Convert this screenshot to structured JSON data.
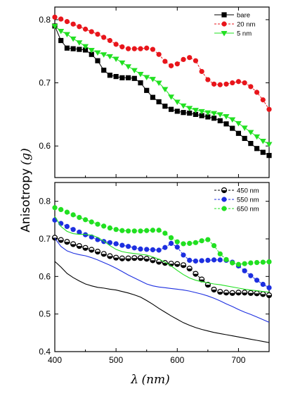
{
  "chart_data": [
    {
      "type": "line",
      "panel": "top",
      "xlim": [
        400,
        750
      ],
      "ylim": [
        0.55,
        0.82
      ],
      "yticks": [
        0.6,
        0.7,
        0.8
      ],
      "legend_position": "top-right",
      "grid": false,
      "series": [
        {
          "name": "bare",
          "color": "#000000",
          "marker": "square",
          "line": "solid",
          "x": [
            400,
            410,
            420,
            430,
            440,
            450,
            460,
            470,
            480,
            490,
            500,
            510,
            520,
            530,
            540,
            550,
            560,
            570,
            580,
            590,
            600,
            610,
            620,
            630,
            640,
            650,
            660,
            670,
            680,
            690,
            700,
            710,
            720,
            730,
            740,
            750
          ],
          "y": [
            0.79,
            0.767,
            0.755,
            0.754,
            0.753,
            0.752,
            0.745,
            0.735,
            0.72,
            0.712,
            0.71,
            0.708,
            0.708,
            0.707,
            0.7,
            0.688,
            0.677,
            0.67,
            0.663,
            0.658,
            0.655,
            0.653,
            0.652,
            0.65,
            0.648,
            0.646,
            0.644,
            0.64,
            0.635,
            0.628,
            0.62,
            0.612,
            0.604,
            0.596,
            0.59,
            0.585
          ]
        },
        {
          "name": "20 nm",
          "color": "#e8151b",
          "marker": "circle",
          "line": "dashed",
          "x": [
            400,
            410,
            420,
            430,
            440,
            450,
            460,
            470,
            480,
            490,
            500,
            510,
            520,
            530,
            540,
            550,
            560,
            570,
            580,
            590,
            600,
            610,
            620,
            630,
            640,
            650,
            660,
            670,
            680,
            690,
            700,
            710,
            720,
            730,
            740,
            750
          ],
          "y": [
            0.804,
            0.801,
            0.797,
            0.793,
            0.789,
            0.785,
            0.781,
            0.777,
            0.772,
            0.767,
            0.761,
            0.757,
            0.754,
            0.754,
            0.754,
            0.755,
            0.753,
            0.745,
            0.734,
            0.727,
            0.73,
            0.737,
            0.74,
            0.735,
            0.718,
            0.705,
            0.698,
            0.697,
            0.698,
            0.7,
            0.702,
            0.7,
            0.694,
            0.685,
            0.673,
            0.658
          ]
        },
        {
          "name": "5 nm",
          "color": "#21e021",
          "marker": "triangle-down",
          "line": "solid",
          "x": [
            400,
            410,
            420,
            430,
            440,
            450,
            460,
            470,
            480,
            490,
            500,
            510,
            520,
            530,
            540,
            550,
            560,
            570,
            580,
            590,
            600,
            610,
            620,
            630,
            640,
            650,
            660,
            670,
            680,
            690,
            700,
            710,
            720,
            730,
            740,
            750
          ],
          "y": [
            0.79,
            0.782,
            0.777,
            0.77,
            0.764,
            0.758,
            0.752,
            0.748,
            0.745,
            0.742,
            0.738,
            0.732,
            0.726,
            0.72,
            0.714,
            0.709,
            0.706,
            0.7,
            0.69,
            0.678,
            0.67,
            0.664,
            0.66,
            0.657,
            0.655,
            0.653,
            0.652,
            0.65,
            0.647,
            0.642,
            0.636,
            0.629,
            0.622,
            0.615,
            0.608,
            0.603
          ]
        }
      ]
    },
    {
      "type": "line",
      "panel": "bottom",
      "xlim": [
        400,
        750
      ],
      "ylim": [
        0.4,
        0.85
      ],
      "xticks": [
        400,
        500,
        600,
        700
      ],
      "yticks": [
        0.4,
        0.5,
        0.6,
        0.7,
        0.8
      ],
      "legend_position": "top-right",
      "grid": false,
      "series": [
        {
          "name": "450 nm",
          "color": "#000000",
          "marker": "half-circle",
          "line": "dashed",
          "x": [
            400,
            410,
            420,
            430,
            440,
            450,
            460,
            470,
            480,
            490,
            500,
            510,
            520,
            530,
            540,
            550,
            560,
            570,
            580,
            590,
            600,
            610,
            620,
            630,
            640,
            650,
            660,
            670,
            680,
            690,
            700,
            710,
            720,
            730,
            740,
            750
          ],
          "y": [
            0.703,
            0.697,
            0.692,
            0.686,
            0.681,
            0.676,
            0.671,
            0.666,
            0.66,
            0.654,
            0.65,
            0.648,
            0.648,
            0.649,
            0.649,
            0.647,
            0.643,
            0.639,
            0.636,
            0.634,
            0.633,
            0.63,
            0.621,
            0.607,
            0.592,
            0.578,
            0.565,
            0.559,
            0.557,
            0.556,
            0.557,
            0.557,
            0.556,
            0.555,
            0.553,
            0.55
          ]
        },
        {
          "name": "550 nm",
          "color": "#1d2fe0",
          "marker": "circle",
          "line": "dashed",
          "x": [
            400,
            410,
            420,
            430,
            440,
            450,
            460,
            470,
            480,
            490,
            500,
            510,
            520,
            530,
            540,
            550,
            560,
            570,
            580,
            590,
            600,
            610,
            620,
            630,
            640,
            650,
            660,
            670,
            680,
            690,
            700,
            710,
            720,
            730,
            740,
            750
          ],
          "y": [
            0.75,
            0.741,
            0.733,
            0.725,
            0.718,
            0.711,
            0.705,
            0.698,
            0.693,
            0.69,
            0.687,
            0.683,
            0.68,
            0.676,
            0.673,
            0.672,
            0.671,
            0.67,
            0.677,
            0.688,
            0.678,
            0.657,
            0.643,
            0.641,
            0.642,
            0.643,
            0.644,
            0.644,
            0.643,
            0.638,
            0.628,
            0.615,
            0.602,
            0.59,
            0.579,
            0.57
          ]
        },
        {
          "name": "650 nm",
          "color": "#21e021",
          "marker": "circle",
          "line": "dashed",
          "x": [
            400,
            410,
            420,
            430,
            440,
            450,
            460,
            470,
            480,
            490,
            500,
            510,
            520,
            530,
            540,
            550,
            560,
            570,
            580,
            590,
            600,
            610,
            620,
            630,
            640,
            650,
            660,
            670,
            680,
            690,
            700,
            710,
            720,
            730,
            740,
            750
          ],
          "y": [
            0.783,
            0.778,
            0.771,
            0.764,
            0.757,
            0.751,
            0.745,
            0.739,
            0.734,
            0.729,
            0.725,
            0.722,
            0.721,
            0.721,
            0.721,
            0.722,
            0.723,
            0.723,
            0.715,
            0.703,
            0.692,
            0.687,
            0.688,
            0.69,
            0.695,
            0.698,
            0.682,
            0.66,
            0.645,
            0.636,
            0.632,
            0.634,
            0.636,
            0.637,
            0.638,
            0.639
          ]
        },
        {
          "name": "",
          "color": "#000000",
          "marker": "none",
          "line": "solid",
          "x": [
            400,
            410,
            420,
            430,
            440,
            450,
            460,
            470,
            480,
            490,
            500,
            510,
            520,
            530,
            540,
            550,
            560,
            570,
            580,
            590,
            600,
            610,
            620,
            630,
            640,
            650,
            660,
            670,
            680,
            690,
            700,
            710,
            720,
            730,
            740,
            750
          ],
          "y": [
            0.64,
            0.625,
            0.608,
            0.597,
            0.588,
            0.58,
            0.575,
            0.571,
            0.569,
            0.566,
            0.564,
            0.56,
            0.556,
            0.551,
            0.545,
            0.536,
            0.526,
            0.515,
            0.505,
            0.495,
            0.486,
            0.477,
            0.47,
            0.464,
            0.459,
            0.455,
            0.451,
            0.448,
            0.445,
            0.442,
            0.439,
            0.436,
            0.433,
            0.43,
            0.427,
            0.424
          ]
        },
        {
          "name": "",
          "color": "#1d2fe0",
          "marker": "none",
          "line": "solid",
          "x": [
            400,
            410,
            420,
            430,
            440,
            450,
            460,
            470,
            480,
            490,
            500,
            510,
            520,
            530,
            540,
            550,
            560,
            570,
            580,
            590,
            600,
            610,
            620,
            630,
            640,
            650,
            660,
            670,
            680,
            690,
            700,
            710,
            720,
            730,
            740,
            750
          ],
          "y": [
            0.702,
            0.68,
            0.668,
            0.662,
            0.658,
            0.655,
            0.65,
            0.644,
            0.637,
            0.63,
            0.622,
            0.613,
            0.604,
            0.596,
            0.588,
            0.58,
            0.575,
            0.572,
            0.57,
            0.568,
            0.566,
            0.564,
            0.561,
            0.557,
            0.553,
            0.548,
            0.542,
            0.535,
            0.527,
            0.52,
            0.512,
            0.505,
            0.499,
            0.492,
            0.485,
            0.478
          ]
        },
        {
          "name": "",
          "color": "#21e021",
          "marker": "none",
          "line": "solid",
          "x": [
            400,
            410,
            420,
            430,
            440,
            450,
            460,
            470,
            480,
            490,
            500,
            510,
            520,
            530,
            540,
            550,
            560,
            570,
            580,
            590,
            600,
            610,
            620,
            630,
            640,
            650,
            660,
            670,
            680,
            690,
            700,
            710,
            720,
            730,
            740,
            750
          ],
          "y": [
            0.76,
            0.733,
            0.72,
            0.714,
            0.712,
            0.712,
            0.71,
            0.704,
            0.694,
            0.682,
            0.672,
            0.666,
            0.663,
            0.661,
            0.659,
            0.657,
            0.652,
            0.646,
            0.638,
            0.628,
            0.616,
            0.605,
            0.596,
            0.59,
            0.586,
            0.583,
            0.58,
            0.578,
            0.575,
            0.572,
            0.569,
            0.566,
            0.564,
            0.562,
            0.56,
            0.558
          ]
        }
      ]
    }
  ],
  "ylabel": "Anisotropy",
  "ylabel_symbol": "(g)",
  "xlabel_symbol": "λ",
  "xlabel_unit": "(nm)"
}
